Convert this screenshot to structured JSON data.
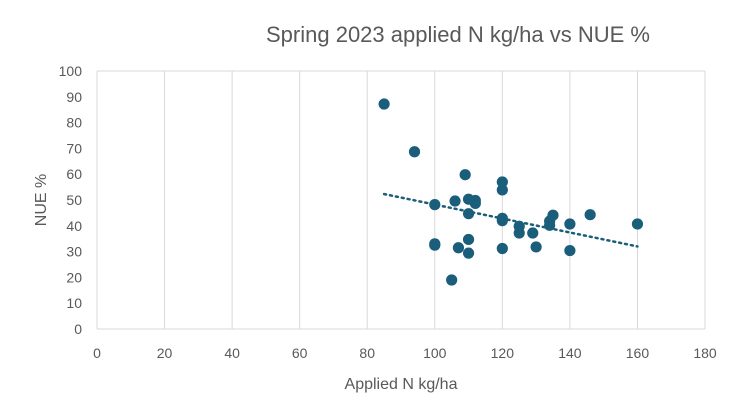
{
  "chart_data": {
    "type": "scatter",
    "title": "Spring 2023 applied N kg/ha vs NUE %",
    "xlabel": "Applied N kg/ha",
    "ylabel": "NUE %",
    "xlim": [
      0,
      180
    ],
    "ylim": [
      0,
      100
    ],
    "x_ticks": [
      0,
      20,
      40,
      60,
      80,
      100,
      120,
      140,
      160,
      180
    ],
    "y_ticks": [
      0,
      10,
      20,
      30,
      40,
      50,
      60,
      70,
      80,
      90,
      100
    ],
    "grid": "vertical",
    "legend": "none",
    "marker_color": "#1b5e7b",
    "trendline": {
      "type": "linear",
      "style": "dotted",
      "color": "#1b5e7b",
      "from": [
        85,
        52.3
      ],
      "to": [
        160,
        32
      ]
    },
    "points": [
      {
        "x": 85,
        "y": 87.2
      },
      {
        "x": 94,
        "y": 68.7
      },
      {
        "x": 100,
        "y": 48.2
      },
      {
        "x": 100,
        "y": 33
      },
      {
        "x": 100,
        "y": 32.5
      },
      {
        "x": 105,
        "y": 19
      },
      {
        "x": 106,
        "y": 49.6
      },
      {
        "x": 107,
        "y": 31.5
      },
      {
        "x": 109,
        "y": 59.8
      },
      {
        "x": 110,
        "y": 50.3
      },
      {
        "x": 110,
        "y": 44.7
      },
      {
        "x": 110,
        "y": 34.7
      },
      {
        "x": 110,
        "y": 29.4
      },
      {
        "x": 112,
        "y": 49.8
      },
      {
        "x": 112,
        "y": 48.7
      },
      {
        "x": 120,
        "y": 57
      },
      {
        "x": 120,
        "y": 53.9
      },
      {
        "x": 120,
        "y": 42.9
      },
      {
        "x": 120,
        "y": 42
      },
      {
        "x": 120,
        "y": 31.2
      },
      {
        "x": 125,
        "y": 39.8
      },
      {
        "x": 125,
        "y": 37.2
      },
      {
        "x": 129,
        "y": 37.2
      },
      {
        "x": 130,
        "y": 31.8
      },
      {
        "x": 134,
        "y": 41.8
      },
      {
        "x": 134,
        "y": 40.2
      },
      {
        "x": 135,
        "y": 44.1
      },
      {
        "x": 140,
        "y": 40.7
      },
      {
        "x": 140,
        "y": 30.4
      },
      {
        "x": 146,
        "y": 44.3
      },
      {
        "x": 160,
        "y": 40.7
      }
    ]
  }
}
